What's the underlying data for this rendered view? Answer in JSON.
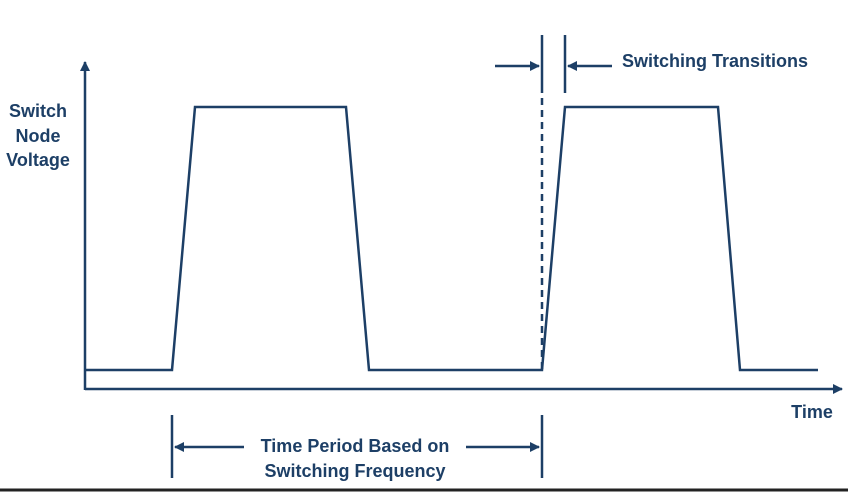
{
  "y_axis_label": [
    "Switch",
    "Node",
    "Voltage"
  ],
  "x_axis_label": "Time",
  "transition_label": "Switching Transitions",
  "period_label": [
    "Time Period Based on",
    "Switching Frequency"
  ]
}
